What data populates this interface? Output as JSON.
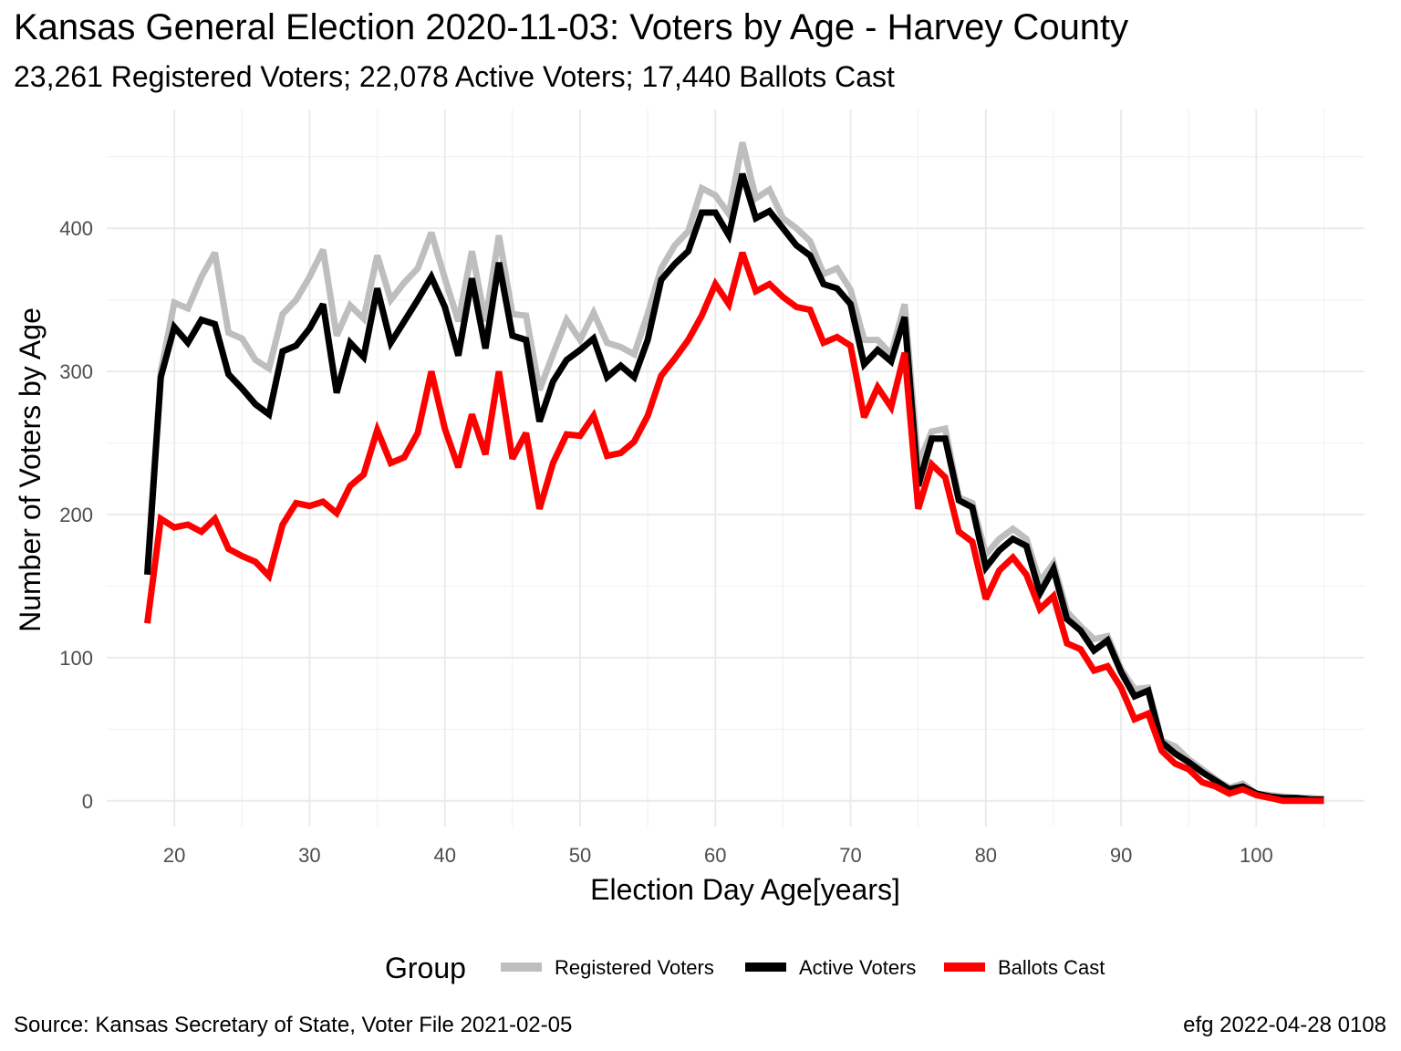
{
  "title": "Kansas General Election 2020-11-03:  Voters by Age - Harvey County",
  "subtitle": "23,261 Registered Voters; 22,078 Active Voters; 17,440 Ballots Cast",
  "caption_left": "Source:  Kansas Secretary of State, Voter File  2021-02-05",
  "caption_right": "efg 2022-04-28 0108",
  "chart_data": {
    "type": "line",
    "title": "Kansas General Election 2020-11-03:  Voters by Age - Harvey County",
    "subtitle": "23,261 Registered Voters; 22,078 Active Voters; 17,440 Ballots Cast",
    "xlabel": "Election Day Age[years]",
    "ylabel": "Number of Voters by Age",
    "xlim": [
      15,
      108
    ],
    "ylim": [
      -18,
      483
    ],
    "x_ticks": [
      20,
      30,
      40,
      50,
      60,
      70,
      80,
      90,
      100
    ],
    "y_ticks": [
      0,
      100,
      200,
      300,
      400
    ],
    "grid": true,
    "legend": {
      "title": "Group",
      "position": "bottom"
    },
    "x": [
      18,
      19,
      20,
      21,
      22,
      23,
      24,
      25,
      26,
      27,
      28,
      29,
      30,
      31,
      32,
      33,
      34,
      35,
      36,
      37,
      38,
      39,
      40,
      41,
      42,
      43,
      44,
      45,
      46,
      47,
      48,
      49,
      50,
      51,
      52,
      53,
      54,
      55,
      56,
      57,
      58,
      59,
      60,
      61,
      62,
      63,
      64,
      65,
      66,
      67,
      68,
      69,
      70,
      71,
      72,
      73,
      74,
      75,
      76,
      77,
      78,
      79,
      80,
      81,
      82,
      83,
      84,
      85,
      86,
      87,
      88,
      89,
      90,
      91,
      92,
      93,
      94,
      95,
      96,
      97,
      98,
      99,
      100,
      101,
      102,
      103,
      104,
      105
    ],
    "series": [
      {
        "name": "Registered Voters",
        "color": "#bebebe",
        "values": [
          160,
          300,
          348,
          344,
          366,
          383,
          327,
          323,
          308,
          302,
          340,
          350,
          366,
          385,
          325,
          346,
          337,
          381,
          350,
          362,
          372,
          397,
          365,
          335,
          384,
          335,
          395,
          340,
          339,
          287,
          312,
          336,
          322,
          341,
          320,
          317,
          312,
          340,
          372,
          388,
          398,
          428,
          423,
          410,
          460,
          421,
          427,
          407,
          400,
          391,
          368,
          372,
          357,
          322,
          322,
          312,
          347,
          235,
          258,
          260,
          212,
          208,
          172,
          183,
          190,
          183,
          153,
          166,
          132,
          122,
          113,
          115,
          92,
          78,
          79,
          42,
          38,
          29,
          22,
          15,
          9,
          12,
          5,
          4,
          3,
          2,
          2,
          1
        ]
      },
      {
        "name": "Active Voters",
        "color": "#000000",
        "values": [
          158,
          296,
          331,
          320,
          336,
          333,
          298,
          288,
          277,
          270,
          314,
          318,
          330,
          347,
          285,
          320,
          310,
          358,
          320,
          335,
          350,
          366,
          345,
          311,
          365,
          316,
          376,
          325,
          322,
          265,
          293,
          308,
          315,
          323,
          296,
          304,
          296,
          322,
          364,
          375,
          384,
          411,
          411,
          395,
          438,
          407,
          412,
          400,
          388,
          381,
          361,
          358,
          347,
          305,
          315,
          307,
          338,
          220,
          253,
          253,
          210,
          205,
          163,
          175,
          183,
          178,
          145,
          162,
          127,
          119,
          105,
          112,
          90,
          73,
          77,
          41,
          33,
          27,
          20,
          14,
          8,
          10,
          5,
          3,
          2,
          2,
          1,
          1
        ]
      },
      {
        "name": "Ballots Cast",
        "color": "#ff0000",
        "values": [
          124,
          197,
          191,
          193,
          188,
          197,
          176,
          171,
          167,
          157,
          193,
          208,
          206,
          209,
          201,
          220,
          228,
          259,
          236,
          240,
          257,
          300,
          260,
          233,
          270,
          242,
          300,
          239,
          257,
          204,
          236,
          256,
          255,
          269,
          241,
          243,
          251,
          269,
          297,
          309,
          322,
          339,
          361,
          347,
          383,
          356,
          361,
          352,
          345,
          343,
          320,
          324,
          318,
          268,
          289,
          275,
          313,
          204,
          235,
          226,
          188,
          181,
          141,
          161,
          170,
          158,
          134,
          143,
          110,
          106,
          91,
          94,
          79,
          57,
          61,
          35,
          26,
          22,
          13,
          10,
          5,
          8,
          4,
          2,
          0,
          0,
          0,
          0
        ]
      }
    ]
  }
}
